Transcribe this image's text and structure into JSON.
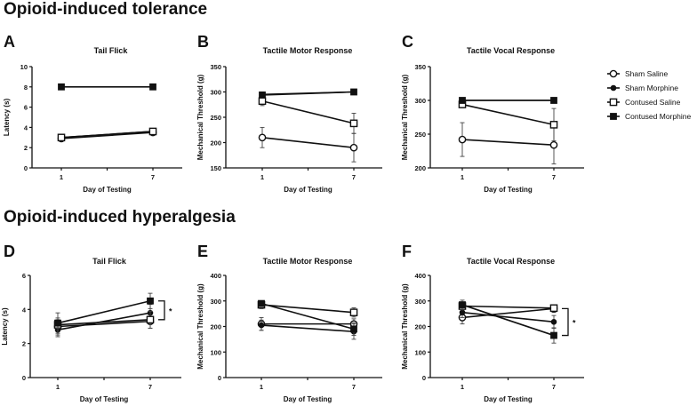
{
  "headings": {
    "tolerance": "Opioid-induced tolerance",
    "hyperalgesia": "Opioid-induced hyperalgesia"
  },
  "legend": [
    {
      "name": "Sham Saline",
      "marker": "open-circle"
    },
    {
      "name": "Sham Morphine",
      "marker": "filled-circle"
    },
    {
      "name": "Contused Saline",
      "marker": "open-square"
    },
    {
      "name": "Contused Morphine",
      "marker": "filled-square"
    }
  ],
  "colors": {
    "line": "#111111",
    "fill_open": "#ffffff"
  },
  "chart_data": [
    {
      "panel": "A",
      "type": "line",
      "title": "Tail Flick",
      "xlabel": "Day of Testing",
      "ylabel": "Latency (s)",
      "x": [
        "1",
        "7"
      ],
      "ylim": [
        0,
        10
      ],
      "yticks": [
        0,
        2,
        4,
        6,
        8,
        10
      ],
      "series": [
        {
          "name": "Sham Saline",
          "values": [
            2.9,
            3.5
          ],
          "err": [
            0.2,
            0.2
          ]
        },
        {
          "name": "Sham Morphine",
          "values": [
            3.0,
            3.6
          ],
          "err": [
            0.1,
            0.1
          ]
        },
        {
          "name": "Contused Saline",
          "values": [
            3.0,
            3.6
          ],
          "err": [
            0.2,
            0.2
          ]
        },
        {
          "name": "Contused Morphine",
          "values": [
            8,
            8
          ],
          "err": [
            0,
            0
          ]
        }
      ]
    },
    {
      "panel": "B",
      "type": "line",
      "title": "Tactile Motor Response",
      "xlabel": "Day of Testing",
      "ylabel": "Mechanical Threshold (g)",
      "x": [
        "1",
        "7"
      ],
      "ylim": [
        150,
        350
      ],
      "yticks": [
        150,
        200,
        250,
        300,
        350
      ],
      "series": [
        {
          "name": "Sham Saline",
          "values": [
            210,
            190
          ],
          "err": [
            20,
            28
          ]
        },
        {
          "name": "Sham Morphine",
          "values": [
            295,
            300
          ],
          "err": [
            5,
            0
          ]
        },
        {
          "name": "Contused Saline",
          "values": [
            282,
            238
          ],
          "err": [
            9,
            20
          ]
        },
        {
          "name": "Contused Morphine",
          "values": [
            294,
            300
          ],
          "err": [
            4,
            0
          ]
        }
      ]
    },
    {
      "panel": "C",
      "type": "line",
      "title": "Tactile Vocal Response",
      "xlabel": "Day of Testing",
      "ylabel": "Mechanical Threshold (g)",
      "x": [
        "1",
        "7"
      ],
      "ylim": [
        200,
        350
      ],
      "yticks": [
        200,
        250,
        300,
        350
      ],
      "series": [
        {
          "name": "Sham Saline",
          "values": [
            242,
            234
          ],
          "err": [
            25,
            28
          ]
        },
        {
          "name": "Sham Morphine",
          "values": [
            300,
            300
          ],
          "err": [
            0,
            0
          ]
        },
        {
          "name": "Contused Saline",
          "values": [
            294,
            264
          ],
          "err": [
            5,
            24
          ]
        },
        {
          "name": "Contused Morphine",
          "values": [
            300,
            300
          ],
          "err": [
            0,
            0
          ]
        }
      ]
    },
    {
      "panel": "D",
      "type": "line",
      "title": "Tail Flick",
      "xlabel": "Day of Testing",
      "ylabel": "Latency (s)",
      "x": [
        "1",
        "7"
      ],
      "ylim": [
        0,
        6
      ],
      "yticks": [
        0,
        2,
        4,
        6
      ],
      "series": [
        {
          "name": "Sham Saline",
          "values": [
            3.0,
            3.3
          ],
          "err": [
            0.4,
            0.4
          ]
        },
        {
          "name": "Sham Morphine",
          "values": [
            2.8,
            3.8
          ],
          "err": [
            0.3,
            0.5
          ]
        },
        {
          "name": "Contused Saline",
          "values": [
            3.1,
            3.4
          ],
          "err": [
            0.7,
            0.5
          ]
        },
        {
          "name": "Contused Morphine",
          "values": [
            3.2,
            4.5
          ],
          "err": [
            0.3,
            0.45
          ]
        }
      ],
      "significance": {
        "label": "*",
        "between": [
          4.5,
          3.4
        ]
      }
    },
    {
      "panel": "E",
      "type": "line",
      "title": "Tactile Motor Response",
      "xlabel": "Day of Testing",
      "ylabel": "Mechanical Threshold (g)",
      "x": [
        "1",
        "7"
      ],
      "ylim": [
        0,
        400
      ],
      "yticks": [
        0,
        100,
        200,
        300,
        400
      ],
      "series": [
        {
          "name": "Sham Saline",
          "values": [
            210,
            210
          ],
          "err": [
            25,
            20
          ]
        },
        {
          "name": "Sham Morphine",
          "values": [
            205,
            180
          ],
          "err": [
            20,
            30
          ]
        },
        {
          "name": "Contused Saline",
          "values": [
            285,
            255
          ],
          "err": [
            15,
            18
          ]
        },
        {
          "name": "Contused Morphine",
          "values": [
            290,
            190
          ],
          "err": [
            10,
            25
          ]
        }
      ]
    },
    {
      "panel": "F",
      "type": "line",
      "title": "Tactile Vocal Response",
      "xlabel": "Day of Testing",
      "ylabel": "Mechanical Threshold (g)",
      "x": [
        "1",
        "7"
      ],
      "ylim": [
        0,
        400
      ],
      "yticks": [
        0,
        100,
        200,
        300,
        400
      ],
      "series": [
        {
          "name": "Sham Saline",
          "values": [
            235,
            270
          ],
          "err": [
            25,
            15
          ]
        },
        {
          "name": "Sham Morphine",
          "values": [
            255,
            218
          ],
          "err": [
            20,
            25
          ]
        },
        {
          "name": "Contused Saline",
          "values": [
            280,
            272
          ],
          "err": [
            15,
            12
          ]
        },
        {
          "name": "Contused Morphine",
          "values": [
            285,
            165
          ],
          "err": [
            18,
            30
          ]
        }
      ],
      "significance": {
        "label": "*",
        "between": [
          270,
          165
        ]
      }
    }
  ]
}
